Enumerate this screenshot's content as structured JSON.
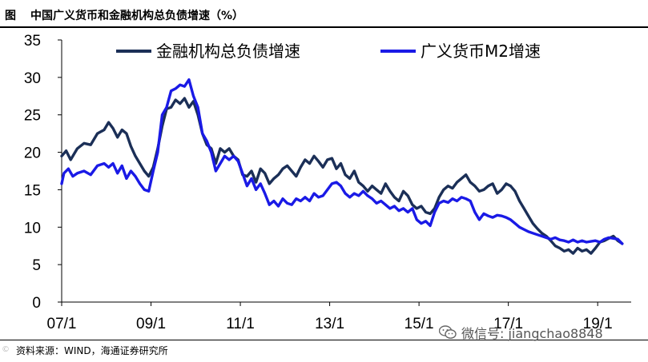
{
  "header": {
    "figure_label": "图",
    "title": "中国广义货币和金融机构总负债增速（%）"
  },
  "source_note": "资料来源：WIND，海通证券研究所",
  "watermark": {
    "text": "微信号: jiangchao8848",
    "icon": "wechat-icon"
  },
  "corner_mark": "©",
  "colors": {
    "liabilities": "#1b2f57",
    "m2": "#1a1ae6"
  },
  "chart_data": {
    "type": "line",
    "title": "中国广义货币和金融机构总负债增速（%）",
    "xlabel": "",
    "ylabel": "",
    "ylim": [
      0,
      35
    ],
    "yticks": [
      0,
      5,
      10,
      15,
      20,
      25,
      30,
      35
    ],
    "xlim": [
      2007.0,
      2019.75
    ],
    "xticks": [
      {
        "x": 2007.0,
        "label": "07/1"
      },
      {
        "x": 2009.0,
        "label": "09/1"
      },
      {
        "x": 2011.0,
        "label": "11/1"
      },
      {
        "x": 2013.0,
        "label": "13/1"
      },
      {
        "x": 2015.0,
        "label": "15/1"
      },
      {
        "x": 2017.0,
        "label": "17/1"
      },
      {
        "x": 2019.0,
        "label": "19/1"
      }
    ],
    "grid": false,
    "legend_position": "top",
    "series": [
      {
        "name": "金融机构总负债增速",
        "color": "#1b2f57",
        "points": [
          [
            2007.0,
            19.5
          ],
          [
            2007.1,
            20.2
          ],
          [
            2007.2,
            19.0
          ],
          [
            2007.35,
            20.5
          ],
          [
            2007.5,
            21.2
          ],
          [
            2007.65,
            21.0
          ],
          [
            2007.8,
            22.5
          ],
          [
            2007.95,
            23.0
          ],
          [
            2008.05,
            24.0
          ],
          [
            2008.15,
            23.2
          ],
          [
            2008.25,
            22.0
          ],
          [
            2008.35,
            23.0
          ],
          [
            2008.45,
            22.5
          ],
          [
            2008.55,
            20.8
          ],
          [
            2008.65,
            19.5
          ],
          [
            2008.75,
            18.5
          ],
          [
            2008.85,
            17.5
          ],
          [
            2008.95,
            16.8
          ],
          [
            2009.05,
            18.0
          ],
          [
            2009.15,
            20.5
          ],
          [
            2009.25,
            23.5
          ],
          [
            2009.35,
            25.8
          ],
          [
            2009.45,
            26.0
          ],
          [
            2009.55,
            27.0
          ],
          [
            2009.65,
            26.5
          ],
          [
            2009.75,
            27.2
          ],
          [
            2009.85,
            26.0
          ],
          [
            2009.95,
            26.8
          ],
          [
            2010.05,
            25.0
          ],
          [
            2010.15,
            22.5
          ],
          [
            2010.25,
            21.0
          ],
          [
            2010.35,
            20.5
          ],
          [
            2010.45,
            18.5
          ],
          [
            2010.55,
            20.5
          ],
          [
            2010.65,
            20.0
          ],
          [
            2010.75,
            20.5
          ],
          [
            2010.85,
            19.5
          ],
          [
            2010.95,
            19.0
          ],
          [
            2011.05,
            17.0
          ],
          [
            2011.15,
            16.8
          ],
          [
            2011.25,
            17.5
          ],
          [
            2011.35,
            16.0
          ],
          [
            2011.45,
            17.8
          ],
          [
            2011.55,
            17.2
          ],
          [
            2011.65,
            15.8
          ],
          [
            2011.75,
            16.5
          ],
          [
            2011.85,
            17.0
          ],
          [
            2011.95,
            17.8
          ],
          [
            2012.05,
            18.2
          ],
          [
            2012.15,
            17.5
          ],
          [
            2012.25,
            16.8
          ],
          [
            2012.35,
            18.0
          ],
          [
            2012.45,
            19.0
          ],
          [
            2012.55,
            18.5
          ],
          [
            2012.65,
            19.5
          ],
          [
            2012.75,
            18.8
          ],
          [
            2012.85,
            18.0
          ],
          [
            2012.95,
            19.0
          ],
          [
            2013.05,
            19.2
          ],
          [
            2013.15,
            17.8
          ],
          [
            2013.25,
            18.5
          ],
          [
            2013.35,
            17.0
          ],
          [
            2013.45,
            16.5
          ],
          [
            2013.55,
            17.5
          ],
          [
            2013.65,
            16.0
          ],
          [
            2013.75,
            15.5
          ],
          [
            2013.85,
            14.8
          ],
          [
            2013.95,
            15.5
          ],
          [
            2014.05,
            15.0
          ],
          [
            2014.15,
            14.5
          ],
          [
            2014.25,
            15.8
          ],
          [
            2014.35,
            14.8
          ],
          [
            2014.45,
            14.0
          ],
          [
            2014.55,
            13.5
          ],
          [
            2014.65,
            14.8
          ],
          [
            2014.75,
            14.2
          ],
          [
            2014.85,
            13.0
          ],
          [
            2014.95,
            12.5
          ],
          [
            2015.05,
            12.8
          ],
          [
            2015.15,
            12.0
          ],
          [
            2015.25,
            11.8
          ],
          [
            2015.35,
            12.5
          ],
          [
            2015.45,
            14.0
          ],
          [
            2015.55,
            15.0
          ],
          [
            2015.65,
            15.5
          ],
          [
            2015.75,
            15.2
          ],
          [
            2015.85,
            16.0
          ],
          [
            2015.95,
            16.5
          ],
          [
            2016.05,
            17.0
          ],
          [
            2016.15,
            16.0
          ],
          [
            2016.25,
            15.5
          ],
          [
            2016.35,
            14.8
          ],
          [
            2016.45,
            15.0
          ],
          [
            2016.55,
            15.5
          ],
          [
            2016.65,
            15.8
          ],
          [
            2016.75,
            14.5
          ],
          [
            2016.85,
            15.0
          ],
          [
            2016.95,
            15.8
          ],
          [
            2017.05,
            15.5
          ],
          [
            2017.15,
            14.8
          ],
          [
            2017.25,
            13.5
          ],
          [
            2017.35,
            12.5
          ],
          [
            2017.45,
            11.5
          ],
          [
            2017.55,
            10.5
          ],
          [
            2017.65,
            9.8
          ],
          [
            2017.75,
            9.2
          ],
          [
            2017.85,
            8.8
          ],
          [
            2017.95,
            8.2
          ],
          [
            2018.05,
            7.5
          ],
          [
            2018.15,
            7.2
          ],
          [
            2018.25,
            6.8
          ],
          [
            2018.35,
            7.0
          ],
          [
            2018.45,
            6.5
          ],
          [
            2018.55,
            7.2
          ],
          [
            2018.65,
            6.8
          ],
          [
            2018.75,
            7.0
          ],
          [
            2018.85,
            6.5
          ],
          [
            2018.95,
            7.2
          ],
          [
            2019.05,
            8.0
          ],
          [
            2019.15,
            8.2
          ],
          [
            2019.25,
            8.5
          ],
          [
            2019.35,
            8.8
          ],
          [
            2019.45,
            8.2
          ],
          [
            2019.55,
            7.8
          ]
        ]
      },
      {
        "name": "广义货币M2增速",
        "color": "#1a1ae6",
        "points": [
          [
            2007.0,
            15.8
          ],
          [
            2007.05,
            17.2
          ],
          [
            2007.15,
            17.8
          ],
          [
            2007.25,
            16.8
          ],
          [
            2007.35,
            17.2
          ],
          [
            2007.5,
            17.5
          ],
          [
            2007.65,
            17.0
          ],
          [
            2007.8,
            18.2
          ],
          [
            2007.95,
            18.5
          ],
          [
            2008.05,
            18.0
          ],
          [
            2008.15,
            18.5
          ],
          [
            2008.25,
            17.2
          ],
          [
            2008.35,
            18.2
          ],
          [
            2008.45,
            16.5
          ],
          [
            2008.55,
            17.5
          ],
          [
            2008.65,
            16.8
          ],
          [
            2008.75,
            15.8
          ],
          [
            2008.85,
            15.0
          ],
          [
            2008.95,
            14.8
          ],
          [
            2009.05,
            17.5
          ],
          [
            2009.15,
            20.0
          ],
          [
            2009.25,
            25.0
          ],
          [
            2009.35,
            26.0
          ],
          [
            2009.45,
            28.2
          ],
          [
            2009.55,
            28.5
          ],
          [
            2009.65,
            29.0
          ],
          [
            2009.75,
            28.8
          ],
          [
            2009.85,
            29.7
          ],
          [
            2009.95,
            27.5
          ],
          [
            2010.05,
            26.0
          ],
          [
            2010.15,
            22.5
          ],
          [
            2010.25,
            21.5
          ],
          [
            2010.35,
            20.0
          ],
          [
            2010.45,
            17.5
          ],
          [
            2010.55,
            18.5
          ],
          [
            2010.65,
            19.5
          ],
          [
            2010.75,
            19.0
          ],
          [
            2010.85,
            19.5
          ],
          [
            2010.95,
            18.8
          ],
          [
            2011.05,
            17.2
          ],
          [
            2011.15,
            15.5
          ],
          [
            2011.25,
            16.5
          ],
          [
            2011.35,
            15.0
          ],
          [
            2011.45,
            15.8
          ],
          [
            2011.55,
            14.5
          ],
          [
            2011.65,
            13.0
          ],
          [
            2011.75,
            13.5
          ],
          [
            2011.85,
            12.8
          ],
          [
            2011.95,
            13.8
          ],
          [
            2012.05,
            13.2
          ],
          [
            2012.15,
            13.0
          ],
          [
            2012.25,
            13.8
          ],
          [
            2012.35,
            13.5
          ],
          [
            2012.45,
            14.0
          ],
          [
            2012.55,
            13.5
          ],
          [
            2012.65,
            14.5
          ],
          [
            2012.75,
            14.0
          ],
          [
            2012.85,
            14.2
          ],
          [
            2012.95,
            15.0
          ],
          [
            2013.05,
            15.8
          ],
          [
            2013.15,
            16.0
          ],
          [
            2013.25,
            15.5
          ],
          [
            2013.35,
            14.5
          ],
          [
            2013.45,
            14.0
          ],
          [
            2013.55,
            14.5
          ],
          [
            2013.65,
            14.2
          ],
          [
            2013.75,
            14.8
          ],
          [
            2013.85,
            14.2
          ],
          [
            2013.95,
            13.8
          ],
          [
            2014.05,
            13.2
          ],
          [
            2014.15,
            13.5
          ],
          [
            2014.25,
            13.0
          ],
          [
            2014.35,
            12.5
          ],
          [
            2014.45,
            12.8
          ],
          [
            2014.55,
            12.2
          ],
          [
            2014.65,
            12.5
          ],
          [
            2014.75,
            12.0
          ],
          [
            2014.85,
            12.5
          ],
          [
            2014.95,
            11.0
          ],
          [
            2015.05,
            10.5
          ],
          [
            2015.15,
            10.8
          ],
          [
            2015.25,
            10.2
          ],
          [
            2015.35,
            12.0
          ],
          [
            2015.45,
            13.2
          ],
          [
            2015.55,
            13.5
          ],
          [
            2015.65,
            13.3
          ],
          [
            2015.75,
            13.8
          ],
          [
            2015.85,
            13.5
          ],
          [
            2015.95,
            14.0
          ],
          [
            2016.05,
            13.8
          ],
          [
            2016.15,
            13.5
          ],
          [
            2016.25,
            12.0
          ],
          [
            2016.35,
            11.0
          ],
          [
            2016.45,
            11.8
          ],
          [
            2016.55,
            11.5
          ],
          [
            2016.65,
            11.3
          ],
          [
            2016.75,
            11.6
          ],
          [
            2016.85,
            11.5
          ],
          [
            2016.95,
            11.3
          ],
          [
            2017.05,
            11.0
          ],
          [
            2017.15,
            10.5
          ],
          [
            2017.25,
            10.0
          ],
          [
            2017.35,
            9.7
          ],
          [
            2017.45,
            9.4
          ],
          [
            2017.55,
            9.2
          ],
          [
            2017.65,
            9.0
          ],
          [
            2017.75,
            8.8
          ],
          [
            2017.85,
            8.6
          ],
          [
            2017.95,
            8.4
          ],
          [
            2018.05,
            8.6
          ],
          [
            2018.15,
            8.3
          ],
          [
            2018.25,
            8.2
          ],
          [
            2018.35,
            8.0
          ],
          [
            2018.45,
            8.3
          ],
          [
            2018.55,
            8.0
          ],
          [
            2018.65,
            8.2
          ],
          [
            2018.75,
            8.0
          ],
          [
            2018.85,
            8.1
          ],
          [
            2018.95,
            8.2
          ],
          [
            2019.05,
            8.0
          ],
          [
            2019.15,
            8.4
          ],
          [
            2019.25,
            8.6
          ],
          [
            2019.35,
            8.5
          ],
          [
            2019.45,
            8.4
          ],
          [
            2019.55,
            7.8
          ]
        ]
      }
    ]
  }
}
